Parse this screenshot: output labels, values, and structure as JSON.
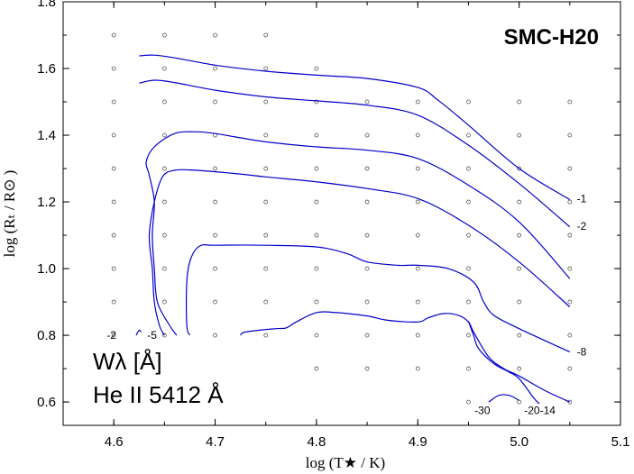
{
  "chart_data": {
    "type": "contour",
    "title": "SMC-H20",
    "xlabel": "log (T★ / K)",
    "ylabel": "log (Rₜ / R⊙ )",
    "xlim": [
      4.55,
      5.1
    ],
    "ylim": [
      0.53,
      1.8
    ],
    "xticks": [
      4.6,
      4.7,
      4.8,
      4.9,
      5.0,
      5.1
    ],
    "xtick_labels": [
      "4.6",
      "4.7",
      "4.8",
      "4.9",
      "5.0",
      "5.1"
    ],
    "yticks": [
      0.6,
      0.8,
      1.0,
      1.2,
      1.4,
      1.6,
      1.8
    ],
    "ytick_labels": [
      "0.6",
      "0.8",
      "1.0",
      "1.2",
      "1.4",
      "1.6",
      "1.8"
    ],
    "annotation": {
      "quantity": "Wλ [Å]",
      "line": "He II 5412 Å"
    },
    "grid_models": [
      [
        4.6,
        1.7
      ],
      [
        4.65,
        1.7
      ],
      [
        4.7,
        1.7
      ],
      [
        4.75,
        1.7
      ],
      [
        4.6,
        1.6
      ],
      [
        4.65,
        1.6
      ],
      [
        4.7,
        1.6
      ],
      [
        4.75,
        1.6
      ],
      [
        4.8,
        1.6
      ],
      [
        4.6,
        1.5
      ],
      [
        4.65,
        1.5
      ],
      [
        4.7,
        1.5
      ],
      [
        4.75,
        1.5
      ],
      [
        4.8,
        1.5
      ],
      [
        4.85,
        1.5
      ],
      [
        4.9,
        1.5
      ],
      [
        4.95,
        1.5
      ],
      [
        5.0,
        1.5
      ],
      [
        5.05,
        1.5
      ],
      [
        4.6,
        1.4
      ],
      [
        4.65,
        1.4
      ],
      [
        4.7,
        1.4
      ],
      [
        4.75,
        1.4
      ],
      [
        4.8,
        1.4
      ],
      [
        4.85,
        1.4
      ],
      [
        4.9,
        1.4
      ],
      [
        4.95,
        1.4
      ],
      [
        5.0,
        1.4
      ],
      [
        5.05,
        1.4
      ],
      [
        4.6,
        1.3
      ],
      [
        4.65,
        1.3
      ],
      [
        4.7,
        1.3
      ],
      [
        4.75,
        1.3
      ],
      [
        4.8,
        1.3
      ],
      [
        4.85,
        1.3
      ],
      [
        4.9,
        1.3
      ],
      [
        4.95,
        1.3
      ],
      [
        5.0,
        1.3
      ],
      [
        5.05,
        1.3
      ],
      [
        4.6,
        1.2
      ],
      [
        4.65,
        1.2
      ],
      [
        4.7,
        1.2
      ],
      [
        4.75,
        1.2
      ],
      [
        4.8,
        1.2
      ],
      [
        4.85,
        1.2
      ],
      [
        4.9,
        1.2
      ],
      [
        4.95,
        1.2
      ],
      [
        5.0,
        1.2
      ],
      [
        5.05,
        1.2
      ],
      [
        4.6,
        1.1
      ],
      [
        4.65,
        1.1
      ],
      [
        4.7,
        1.1
      ],
      [
        4.75,
        1.1
      ],
      [
        4.8,
        1.1
      ],
      [
        4.85,
        1.1
      ],
      [
        4.9,
        1.1
      ],
      [
        4.95,
        1.1
      ],
      [
        5.0,
        1.1
      ],
      [
        5.05,
        1.1
      ],
      [
        4.6,
        1.0
      ],
      [
        4.65,
        1.0
      ],
      [
        4.7,
        1.0
      ],
      [
        4.75,
        1.0
      ],
      [
        4.8,
        1.0
      ],
      [
        4.85,
        1.0
      ],
      [
        4.9,
        1.0
      ],
      [
        4.95,
        1.0
      ],
      [
        5.0,
        1.0
      ],
      [
        5.05,
        1.0
      ],
      [
        4.6,
        0.9
      ],
      [
        4.65,
        0.9
      ],
      [
        4.7,
        0.9
      ],
      [
        4.75,
        0.9
      ],
      [
        4.8,
        0.9
      ],
      [
        4.85,
        0.9
      ],
      [
        4.9,
        0.9
      ],
      [
        4.95,
        0.9
      ],
      [
        5.0,
        0.9
      ],
      [
        5.05,
        0.9
      ],
      [
        4.6,
        0.8
      ],
      [
        4.65,
        0.8
      ],
      [
        4.7,
        0.8
      ],
      [
        4.75,
        0.8
      ],
      [
        4.8,
        0.8
      ],
      [
        4.85,
        0.8
      ],
      [
        4.9,
        0.8
      ],
      [
        4.95,
        0.8
      ],
      [
        5.0,
        0.8
      ],
      [
        5.05,
        0.8
      ],
      [
        4.8,
        0.7
      ],
      [
        4.85,
        0.7
      ],
      [
        4.9,
        0.7
      ],
      [
        4.95,
        0.7
      ],
      [
        5.0,
        0.7
      ],
      [
        5.05,
        0.7
      ],
      [
        4.95,
        0.6
      ],
      [
        5.0,
        0.6
      ],
      [
        5.05,
        0.6
      ]
    ],
    "contours": [
      {
        "level": "-1",
        "label": "-1",
        "points": [
          [
            4.625,
            1.638
          ],
          [
            4.64,
            1.64
          ],
          [
            4.66,
            1.632
          ],
          [
            4.7,
            1.61
          ],
          [
            4.75,
            1.592
          ],
          [
            4.8,
            1.58
          ],
          [
            4.85,
            1.57
          ],
          [
            4.9,
            1.543
          ],
          [
            4.92,
            1.505
          ],
          [
            4.95,
            1.43
          ],
          [
            5.0,
            1.3
          ],
          [
            5.05,
            1.207
          ]
        ]
      },
      {
        "level": "-2",
        "label": "-2",
        "points": [
          [
            4.625,
            1.556
          ],
          [
            4.64,
            1.565
          ],
          [
            4.66,
            1.558
          ],
          [
            4.7,
            1.535
          ],
          [
            4.75,
            1.515
          ],
          [
            4.8,
            1.503
          ],
          [
            4.85,
            1.49
          ],
          [
            4.9,
            1.46
          ],
          [
            4.95,
            1.37
          ],
          [
            5.0,
            1.255
          ],
          [
            5.05,
            1.125
          ]
        ]
      },
      {
        "level": "-5",
        "label": "-5",
        "points": [
          [
            4.662,
            0.8
          ],
          [
            4.655,
            0.83
          ],
          [
            4.643,
            0.9
          ],
          [
            4.64,
            1.0
          ],
          [
            4.638,
            1.1
          ],
          [
            4.64,
            1.2
          ],
          [
            4.635,
            1.28
          ],
          [
            4.632,
            1.32
          ],
          [
            4.64,
            1.365
          ],
          [
            4.66,
            1.405
          ],
          [
            4.68,
            1.41
          ],
          [
            4.7,
            1.405
          ],
          [
            4.75,
            1.38
          ],
          [
            4.8,
            1.365
          ],
          [
            4.85,
            1.355
          ],
          [
            4.9,
            1.33
          ],
          [
            4.95,
            1.25
          ],
          [
            5.0,
            1.14
          ],
          [
            5.05,
            0.97
          ]
        ]
      },
      {
        "level": "-2",
        "label": "-2",
        "points": [
          [
            4.65,
            0.8
          ],
          [
            4.645,
            0.83
          ],
          [
            4.64,
            0.9
          ],
          [
            4.638,
            1.0
          ],
          [
            4.635,
            1.1
          ],
          [
            4.64,
            1.2
          ],
          [
            4.648,
            1.275
          ],
          [
            4.66,
            1.295
          ],
          [
            4.68,
            1.295
          ],
          [
            4.72,
            1.285
          ],
          [
            4.75,
            1.275
          ],
          [
            4.8,
            1.26
          ],
          [
            4.85,
            1.24
          ],
          [
            4.9,
            1.21
          ],
          [
            4.95,
            1.13
          ],
          [
            5.0,
            1.02
          ],
          [
            5.05,
            0.885
          ]
        ]
      },
      {
        "level": "-8",
        "label": "-8",
        "points": [
          [
            4.675,
            0.8
          ],
          [
            4.672,
            0.83
          ],
          [
            4.672,
            0.96
          ],
          [
            4.676,
            1.03
          ],
          [
            4.685,
            1.068
          ],
          [
            4.7,
            1.07
          ],
          [
            4.75,
            1.07
          ],
          [
            4.8,
            1.065
          ],
          [
            4.83,
            1.045
          ],
          [
            4.85,
            1.02
          ],
          [
            4.88,
            1.01
          ],
          [
            4.9,
            1.01
          ],
          [
            4.93,
            1.0
          ],
          [
            4.955,
            0.96
          ],
          [
            4.965,
            0.9
          ],
          [
            4.975,
            0.86
          ],
          [
            5.0,
            0.82
          ],
          [
            5.05,
            0.75
          ]
        ]
      },
      {
        "level": "-14",
        "label": "-14",
        "points": [
          [
            4.725,
            0.8
          ],
          [
            4.73,
            0.81
          ],
          [
            4.76,
            0.82
          ],
          [
            4.77,
            0.822
          ],
          [
            4.78,
            0.84
          ],
          [
            4.8,
            0.868
          ],
          [
            4.82,
            0.868
          ],
          [
            4.85,
            0.858
          ],
          [
            4.87,
            0.845
          ],
          [
            4.9,
            0.84
          ],
          [
            4.91,
            0.852
          ],
          [
            4.925,
            0.865
          ],
          [
            4.94,
            0.86
          ],
          [
            4.95,
            0.84
          ],
          [
            4.955,
            0.81
          ],
          [
            4.97,
            0.735
          ],
          [
            4.985,
            0.7
          ],
          [
            5.0,
            0.678
          ],
          [
            5.025,
            0.635
          ],
          [
            5.05,
            0.6
          ]
        ]
      },
      {
        "level": "-20",
        "label": "-20",
        "points": [
          [
            4.95,
            0.842
          ],
          [
            4.955,
            0.8
          ],
          [
            4.96,
            0.76
          ],
          [
            4.975,
            0.715
          ],
          [
            4.99,
            0.69
          ],
          [
            5.0,
            0.67
          ],
          [
            5.015,
            0.61
          ],
          [
            5.02,
            0.595
          ]
        ]
      },
      {
        "level": "-30",
        "label": "-30",
        "points": [
          [
            4.97,
            0.6
          ],
          [
            4.98,
            0.62
          ],
          [
            4.99,
            0.62
          ],
          [
            5.0,
            0.605
          ]
        ]
      },
      {
        "level": "-5",
        "label": "",
        "points": [
          [
            4.622,
            0.8
          ],
          [
            4.625,
            0.815
          ],
          [
            4.627,
            0.81
          ]
        ]
      }
    ],
    "contour_labels": [
      {
        "text": "-1",
        "x": 5.057,
        "y": 1.21
      },
      {
        "text": "-2",
        "x": 5.057,
        "y": 1.127
      },
      {
        "text": "-8",
        "x": 5.057,
        "y": 0.75
      },
      {
        "text": "-20-14",
        "x": 5.005,
        "y": 0.575
      },
      {
        "text": "-30",
        "x": 4.956,
        "y": 0.575
      },
      {
        "text": "-2",
        "x": 4.593,
        "y": 0.8
      },
      {
        "text": "-5",
        "x": 4.633,
        "y": 0.8
      }
    ],
    "grid": false,
    "line_color": "#0000cc"
  }
}
